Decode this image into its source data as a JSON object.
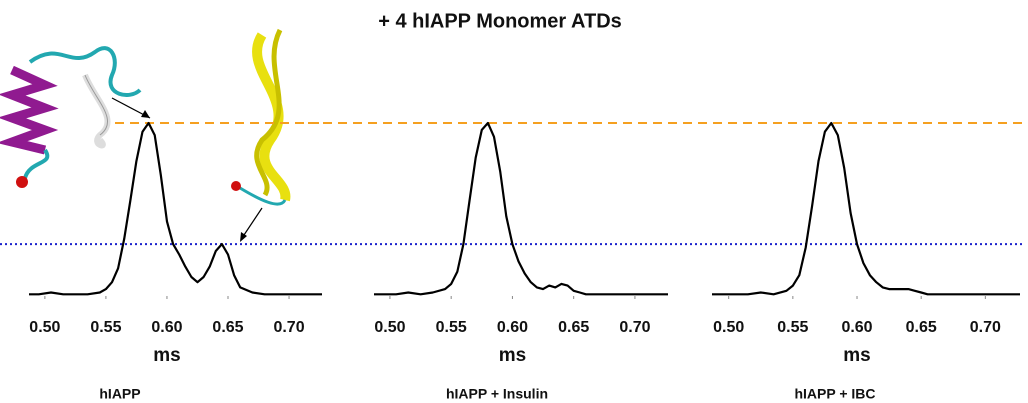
{
  "title": "+ 4 hIAPP Monomer ATDs",
  "reference_lines": [
    {
      "value": 1.0,
      "color": "#f5a020",
      "style": "dashed"
    },
    {
      "value": 0.3,
      "color": "#1c22cc",
      "style": "dotted"
    }
  ],
  "chart_data": [
    {
      "type": "line",
      "caption": "hIAPP",
      "xlabel": "ms",
      "color": "#000000",
      "xlim": [
        0.487,
        0.727
      ],
      "ylim": [
        0,
        1
      ],
      "xticks": [
        {
          "value": 0.5,
          "label": "0.50"
        },
        0.55,
        {
          "value": 0.6,
          "label": "0.60"
        },
        0.65,
        {
          "value": 0.7,
          "label": "0.70"
        }
      ],
      "x": [
        0.487,
        0.495,
        0.505,
        0.515,
        0.525,
        0.535,
        0.545,
        0.55,
        0.555,
        0.56,
        0.565,
        0.57,
        0.575,
        0.58,
        0.585,
        0.59,
        0.595,
        0.6,
        0.605,
        0.61,
        0.615,
        0.62,
        0.625,
        0.63,
        0.635,
        0.64,
        0.645,
        0.65,
        0.655,
        0.66,
        0.67,
        0.68,
        0.69,
        0.7,
        0.715,
        0.727
      ],
      "values": [
        0.01,
        0.01,
        0.02,
        0.01,
        0.01,
        0.01,
        0.02,
        0.04,
        0.08,
        0.16,
        0.33,
        0.55,
        0.78,
        0.95,
        1.0,
        0.93,
        0.7,
        0.43,
        0.3,
        0.24,
        0.17,
        0.11,
        0.08,
        0.11,
        0.17,
        0.26,
        0.3,
        0.24,
        0.12,
        0.05,
        0.02,
        0.01,
        0.01,
        0.01,
        0.01,
        0.01
      ]
    },
    {
      "type": "line",
      "caption": "hIAPP +  Insulin",
      "xlabel": "ms",
      "color": "#000000",
      "xlim": [
        0.487,
        0.727
      ],
      "ylim": [
        0,
        1
      ],
      "xticks": [
        {
          "value": 0.5,
          "label": "0.50"
        },
        0.55,
        {
          "value": 0.6,
          "label": "0.60"
        },
        0.65,
        {
          "value": 0.7,
          "label": "0.70"
        }
      ],
      "x": [
        0.487,
        0.495,
        0.505,
        0.515,
        0.525,
        0.535,
        0.545,
        0.55,
        0.555,
        0.56,
        0.565,
        0.57,
        0.575,
        0.58,
        0.585,
        0.59,
        0.595,
        0.6,
        0.605,
        0.61,
        0.615,
        0.62,
        0.625,
        0.63,
        0.635,
        0.64,
        0.645,
        0.65,
        0.655,
        0.66,
        0.67,
        0.68,
        0.69,
        0.7,
        0.715,
        0.727
      ],
      "values": [
        0.01,
        0.01,
        0.01,
        0.02,
        0.01,
        0.02,
        0.04,
        0.07,
        0.14,
        0.3,
        0.55,
        0.8,
        0.96,
        1.0,
        0.92,
        0.72,
        0.46,
        0.3,
        0.2,
        0.13,
        0.08,
        0.05,
        0.04,
        0.06,
        0.05,
        0.07,
        0.06,
        0.03,
        0.02,
        0.01,
        0.01,
        0.01,
        0.01,
        0.01,
        0.01,
        0.01
      ]
    },
    {
      "type": "line",
      "caption": "hIAPP + IBC",
      "xlabel": "ms",
      "color": "#000000",
      "xlim": [
        0.487,
        0.727
      ],
      "ylim": [
        0,
        1
      ],
      "xticks": [
        {
          "value": 0.5,
          "label": "0.50"
        },
        0.55,
        {
          "value": 0.6,
          "label": "0.60"
        },
        0.65,
        {
          "value": 0.7,
          "label": "0.70"
        }
      ],
      "x": [
        0.487,
        0.495,
        0.505,
        0.515,
        0.525,
        0.535,
        0.545,
        0.55,
        0.555,
        0.56,
        0.565,
        0.57,
        0.575,
        0.58,
        0.585,
        0.59,
        0.595,
        0.6,
        0.605,
        0.61,
        0.615,
        0.62,
        0.625,
        0.63,
        0.635,
        0.64,
        0.645,
        0.65,
        0.655,
        0.66,
        0.67,
        0.68,
        0.69,
        0.7,
        0.715,
        0.727
      ],
      "values": [
        0.01,
        0.01,
        0.01,
        0.01,
        0.02,
        0.01,
        0.03,
        0.06,
        0.12,
        0.28,
        0.52,
        0.78,
        0.95,
        1.0,
        0.93,
        0.74,
        0.48,
        0.3,
        0.19,
        0.12,
        0.08,
        0.05,
        0.04,
        0.04,
        0.04,
        0.04,
        0.03,
        0.02,
        0.01,
        0.01,
        0.01,
        0.01,
        0.01,
        0.01,
        0.01,
        0.01
      ]
    }
  ]
}
